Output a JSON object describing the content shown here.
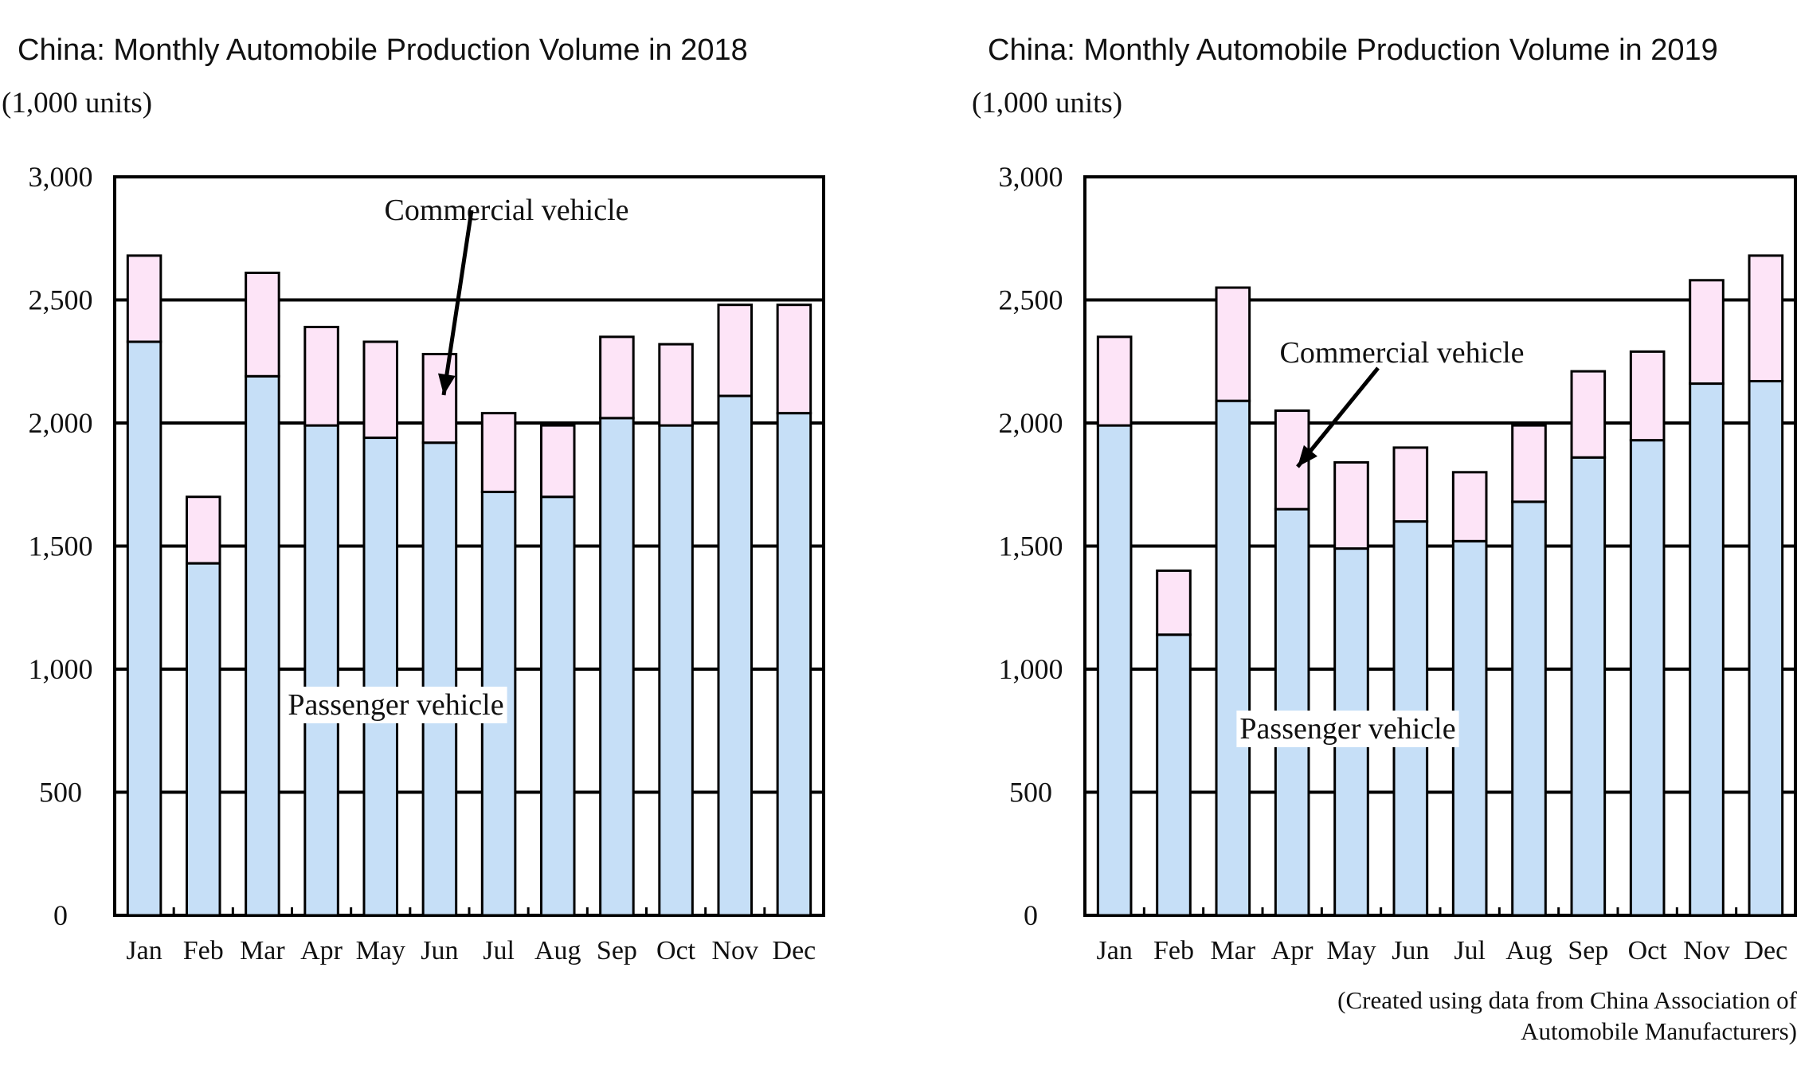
{
  "chart_data": [
    {
      "type": "bar",
      "stacked": true,
      "title": "China: Monthly Automobile Production Volume in 2018",
      "ylabel": "(1,000 units)",
      "ylim": [
        0,
        3000
      ],
      "yticks": [
        "0",
        "500",
        "1,000",
        "1,500",
        "2,000",
        "2,500",
        "3,000"
      ],
      "grid": true,
      "categories": [
        "Jan",
        "Feb",
        "Mar",
        "Apr",
        "May",
        "Jun",
        "Jul",
        "Aug",
        "Sep",
        "Oct",
        "Nov",
        "Dec"
      ],
      "series": [
        {
          "name": "Passenger vehicle",
          "color": "#c6dff7",
          "values": [
            2330,
            1430,
            2190,
            1990,
            1940,
            1920,
            1720,
            1700,
            2020,
            1990,
            2110,
            2040
          ]
        },
        {
          "name": "Commercial vehicle",
          "color": "#fde4f7",
          "values": [
            350,
            270,
            420,
            400,
            390,
            360,
            320,
            290,
            330,
            330,
            370,
            440
          ]
        }
      ],
      "annotations": [
        "Commercial vehicle",
        "Passenger vehicle"
      ]
    },
    {
      "type": "bar",
      "stacked": true,
      "title": "China: Monthly Automobile Production Volume in 2019",
      "ylabel": "(1,000 units)",
      "ylim": [
        0,
        3000
      ],
      "yticks": [
        "0",
        "500",
        "1,000",
        "1,500",
        "2,000",
        "2,500",
        "3,000"
      ],
      "grid": true,
      "categories": [
        "Jan",
        "Feb",
        "Mar",
        "Apr",
        "May",
        "Jun",
        "Jul",
        "Aug",
        "Sep",
        "Oct",
        "Nov",
        "Dec"
      ],
      "series": [
        {
          "name": "Passenger vehicle",
          "color": "#c6dff7",
          "values": [
            1990,
            1140,
            2090,
            1650,
            1490,
            1600,
            1520,
            1680,
            1860,
            1930,
            2160,
            2170
          ]
        },
        {
          "name": "Commercial vehicle",
          "color": "#fde4f7",
          "values": [
            360,
            260,
            460,
            400,
            350,
            300,
            280,
            310,
            350,
            360,
            420,
            510
          ]
        }
      ],
      "annotations": [
        "Commercial vehicle",
        "Passenger vehicle"
      ]
    }
  ],
  "source_note": {
    "line1": "(Created using data from China Association of",
    "line2": "Automobile Manufacturers)"
  }
}
